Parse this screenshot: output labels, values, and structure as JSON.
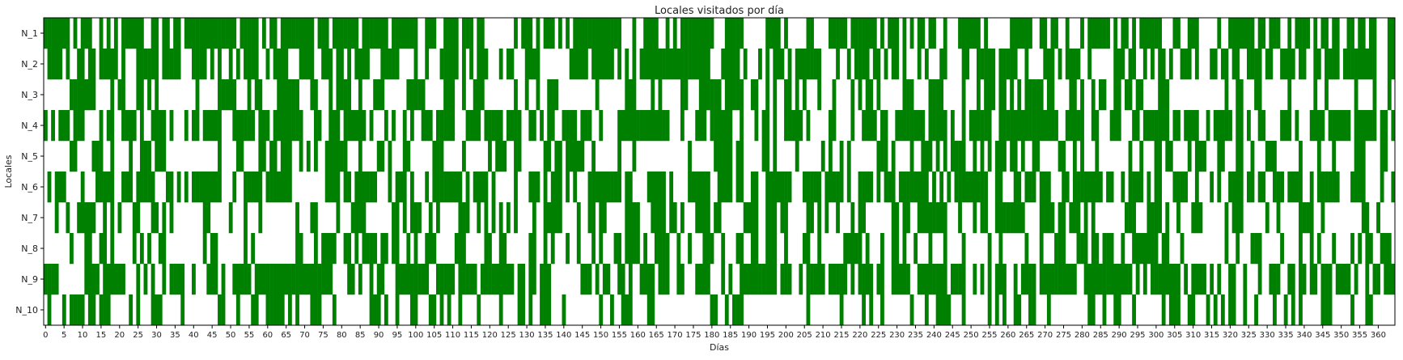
{
  "chart_data": {
    "type": "heatmap",
    "title": "Locales visitados por día",
    "xlabel": "Días",
    "ylabel": "Locales",
    "rows": [
      "N_1",
      "N_2",
      "N_3",
      "N_4",
      "N_5",
      "N_6",
      "N_7",
      "N_8",
      "N_9",
      "N_10"
    ],
    "x_range": [
      0,
      364
    ],
    "x_ticks": [
      0,
      5,
      10,
      15,
      20,
      25,
      30,
      35,
      40,
      45,
      50,
      55,
      60,
      65,
      70,
      75,
      80,
      85,
      90,
      95,
      100,
      105,
      110,
      115,
      120,
      125,
      130,
      135,
      140,
      145,
      150,
      155,
      160,
      165,
      170,
      175,
      180,
      185,
      190,
      195,
      200,
      205,
      210,
      215,
      220,
      225,
      230,
      235,
      240,
      245,
      250,
      255,
      260,
      265,
      270,
      275,
      280,
      285,
      290,
      295,
      300,
      305,
      310,
      315,
      320,
      325,
      330,
      335,
      340,
      345,
      350,
      355,
      360
    ],
    "value_colors": {
      "visited": "#008000",
      "not_visited": "#ffffff"
    },
    "visit_rate_by_row": [
      0.55,
      0.55,
      0.35,
      0.55,
      0.3,
      0.55,
      0.4,
      0.38,
      0.55,
      0.3
    ],
    "legend": "none",
    "grid": false
  }
}
